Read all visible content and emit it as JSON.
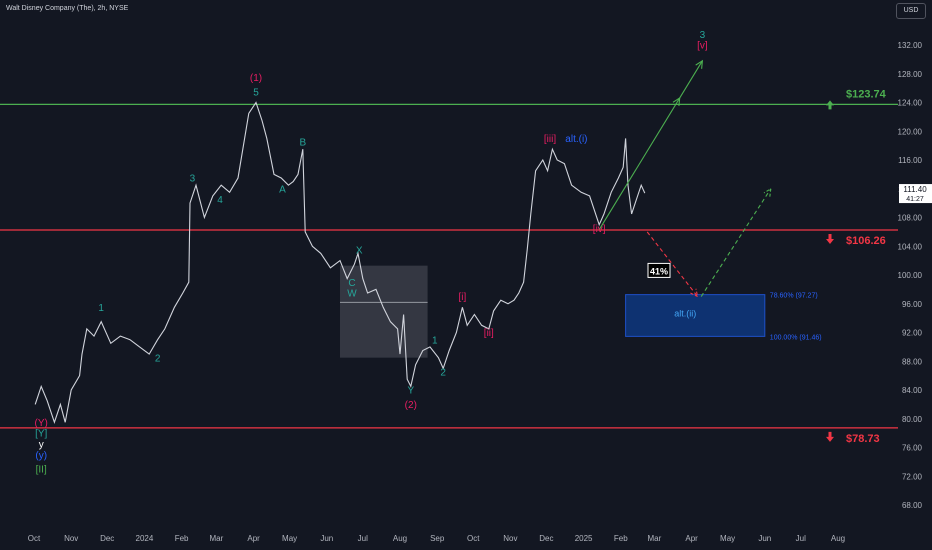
{
  "header": {
    "symbol_title": "Walt Disney Company (The), 2h, NYSE",
    "currency": "USD"
  },
  "price_scale": {
    "ticks": [
      "132.00",
      "128.00",
      "124.00",
      "120.00",
      "116.00",
      "112.00",
      "108.00",
      "104.00",
      "100.00",
      "96.00",
      "92.00",
      "88.00",
      "84.00",
      "80.00",
      "76.00",
      "72.00",
      "68.00"
    ],
    "last_price": "111.40",
    "countdown": "41:27"
  },
  "time_axis": {
    "labels": [
      "Oct",
      "Nov",
      "Dec",
      "2024",
      "Feb",
      "Mar",
      "Apr",
      "May",
      "Jun",
      "Jul",
      "Aug",
      "Sep",
      "Oct",
      "Nov",
      "Dec",
      "2025",
      "Feb",
      "Mar",
      "Apr",
      "May",
      "Jun",
      "Jul",
      "Aug"
    ]
  },
  "chart_data": {
    "type": "line",
    "symbol": "DIS",
    "timeframe": "2h",
    "exchange": "NYSE",
    "ylim": [
      66,
      136
    ],
    "x_range": [
      "2023-10",
      "2025-08"
    ],
    "series": [
      {
        "points": [
          [
            "2023-10-02",
            82.0
          ],
          [
            "2023-10-07",
            84.5
          ],
          [
            "2023-10-12",
            82.5
          ],
          [
            "2023-10-18",
            79.5
          ],
          [
            "2023-10-23",
            82.0
          ],
          [
            "2023-10-27",
            79.5
          ],
          [
            "2023-11-01",
            84.0
          ],
          [
            "2023-11-08",
            86.0
          ],
          [
            "2023-11-10",
            89.0
          ],
          [
            "2023-11-14",
            92.5
          ],
          [
            "2023-11-20",
            91.5
          ],
          [
            "2023-11-26",
            93.5
          ],
          [
            "2023-12-04",
            90.5
          ],
          [
            "2023-12-12",
            91.5
          ],
          [
            "2023-12-20",
            91.0
          ],
          [
            "2023-12-28",
            90.0
          ],
          [
            "2024-01-05",
            89.0
          ],
          [
            "2024-01-12",
            91.0
          ],
          [
            "2024-01-18",
            92.5
          ],
          [
            "2024-01-26",
            95.5
          ],
          [
            "2024-02-02",
            97.5
          ],
          [
            "2024-02-07",
            99.0
          ],
          [
            "2024-02-08",
            110.0
          ],
          [
            "2024-02-13",
            112.5
          ],
          [
            "2024-02-20",
            108.0
          ],
          [
            "2024-02-27",
            111.0
          ],
          [
            "2024-03-05",
            112.5
          ],
          [
            "2024-03-12",
            111.5
          ],
          [
            "2024-03-19",
            113.5
          ],
          [
            "2024-03-28",
            122.5
          ],
          [
            "2024-04-03",
            124.0
          ],
          [
            "2024-04-08",
            121.5
          ],
          [
            "2024-04-12",
            119.0
          ],
          [
            "2024-04-18",
            114.0
          ],
          [
            "2024-04-24",
            113.5
          ],
          [
            "2024-04-30",
            112.5
          ],
          [
            "2024-05-04",
            113.0
          ],
          [
            "2024-05-08",
            114.0
          ],
          [
            "2024-05-12",
            117.5
          ],
          [
            "2024-05-14",
            106.0
          ],
          [
            "2024-05-20",
            104.0
          ],
          [
            "2024-05-27",
            103.0
          ],
          [
            "2024-06-04",
            101.0
          ],
          [
            "2024-06-12",
            102.0
          ],
          [
            "2024-06-18",
            99.5
          ],
          [
            "2024-06-24",
            101.5
          ],
          [
            "2024-06-27",
            103.0
          ],
          [
            "2024-07-01",
            99.5
          ],
          [
            "2024-07-05",
            97.5
          ],
          [
            "2024-07-12",
            98.0
          ],
          [
            "2024-07-18",
            95.5
          ],
          [
            "2024-07-24",
            93.5
          ],
          [
            "2024-07-30",
            92.5
          ],
          [
            "2024-08-01",
            89.0
          ],
          [
            "2024-08-04",
            94.5
          ],
          [
            "2024-08-07",
            85.5
          ],
          [
            "2024-08-10",
            84.5
          ],
          [
            "2024-08-14",
            87.5
          ],
          [
            "2024-08-20",
            89.5
          ],
          [
            "2024-08-26",
            90.0
          ],
          [
            "2024-09-02",
            88.5
          ],
          [
            "2024-09-06",
            87.0
          ],
          [
            "2024-09-11",
            89.5
          ],
          [
            "2024-09-17",
            92.0
          ],
          [
            "2024-09-22",
            95.5
          ],
          [
            "2024-09-26",
            93.0
          ],
          [
            "2024-10-02",
            94.5
          ],
          [
            "2024-10-08",
            93.0
          ],
          [
            "2024-10-14",
            92.5
          ],
          [
            "2024-10-18",
            95.0
          ],
          [
            "2024-10-24",
            96.5
          ],
          [
            "2024-10-30",
            96.0
          ],
          [
            "2024-11-04",
            96.5
          ],
          [
            "2024-11-08",
            97.5
          ],
          [
            "2024-11-12",
            99.0
          ],
          [
            "2024-11-15",
            103.5
          ],
          [
            "2024-11-18",
            108.5
          ],
          [
            "2024-11-22",
            114.5
          ],
          [
            "2024-11-28",
            116.0
          ],
          [
            "2024-12-02",
            114.5
          ],
          [
            "2024-12-06",
            117.5
          ],
          [
            "2024-12-10",
            116.0
          ],
          [
            "2024-12-16",
            115.5
          ],
          [
            "2024-12-22",
            112.5
          ],
          [
            "2024-12-30",
            111.5
          ],
          [
            "2025-01-06",
            111.0
          ],
          [
            "2025-01-10",
            109.0
          ],
          [
            "2025-01-14",
            107.0
          ],
          [
            "2025-01-18",
            108.5
          ],
          [
            "2025-01-24",
            111.5
          ],
          [
            "2025-01-30",
            113.5
          ],
          [
            "2025-02-03",
            115.0
          ],
          [
            "2025-02-05",
            119.0
          ],
          [
            "2025-02-07",
            112.5
          ],
          [
            "2025-02-10",
            108.5
          ],
          [
            "2025-02-14",
            110.5
          ],
          [
            "2025-02-18",
            112.5
          ],
          [
            "2025-02-21",
            111.4
          ]
        ]
      }
    ],
    "horizontal_levels": [
      {
        "label": "$123.74",
        "value": 123.74,
        "color": "#4caf50",
        "arrow": "up"
      },
      {
        "label": "$106.26",
        "value": 106.26,
        "color": "#f23645",
        "arrow": "down"
      },
      {
        "label": "$78.73",
        "value": 78.73,
        "color": "#f23645",
        "arrow": "down"
      }
    ],
    "fib_zone": {
      "upper_label": "78.60% (97.27)",
      "upper": 97.27,
      "lower_label": "100.00% (91.46)",
      "lower": 91.46,
      "from": "2025-02-05",
      "to": "2025-06-01",
      "name": "alt.(ii)"
    },
    "gray_box": {
      "from": "2024-06-12",
      "to": "2024-08-24",
      "top": 101.3,
      "mid": 96.2,
      "bottom": 88.5
    },
    "projections": [
      {
        "style": "solid",
        "color": "#4caf50",
        "points": [
          [
            "2025-01-14",
            106.3
          ],
          [
            "2025-04-10",
            129.8
          ]
        ]
      },
      {
        "style": "dashed",
        "color": "#f23645",
        "points": [
          [
            "2025-02-23",
            106.0
          ],
          [
            "2025-04-06",
            97.0
          ]
        ]
      },
      {
        "style": "dashed",
        "color": "#4caf50",
        "points": [
          [
            "2025-04-09",
            97.0
          ],
          [
            "2025-06-06",
            112.0
          ]
        ]
      }
    ],
    "probability_label": "41%",
    "wave_labels": [
      {
        "text": "(Y)",
        "color": "#e91e63",
        "x": "2023-10-07",
        "y": 79.0,
        "pos": "below",
        "bg": false
      },
      {
        "text": "[Y]",
        "color": "#26a69a",
        "x": "2023-10-07",
        "y": 77.5,
        "pos": "below",
        "bg": false
      },
      {
        "text": "y",
        "color": "#ffffff",
        "x": "2023-10-07",
        "y": 76.0,
        "pos": "below",
        "bg": false
      },
      {
        "text": "(y)",
        "color": "#2962ff",
        "x": "2023-10-07",
        "y": 74.5,
        "pos": "below",
        "bg": false
      },
      {
        "text": "[II]",
        "color": "#4caf50",
        "x": "2023-10-07",
        "y": 72.5,
        "pos": "below",
        "bg": false
      },
      {
        "text": "1",
        "color": "#26a69a",
        "x": "2023-11-26",
        "y": 95.0,
        "pos": "above",
        "bg": false
      },
      {
        "text": "2",
        "color": "#26a69a",
        "x": "2024-01-12",
        "y": 88.0,
        "pos": "below",
        "bg": false
      },
      {
        "text": "3",
        "color": "#26a69a",
        "x": "2024-02-10",
        "y": 113.0,
        "pos": "above",
        "bg": false
      },
      {
        "text": "4",
        "color": "#26a69a",
        "x": "2024-03-04",
        "y": 110.0,
        "pos": "below",
        "bg": false
      },
      {
        "text": "(1)",
        "color": "#e91e63",
        "x": "2024-04-03",
        "y": 127.0,
        "pos": "above",
        "bg": false
      },
      {
        "text": "5",
        "color": "#26a69a",
        "x": "2024-04-03",
        "y": 125.0,
        "pos": "above",
        "bg": false
      },
      {
        "text": "A",
        "color": "#26a69a",
        "x": "2024-04-25",
        "y": 111.5,
        "pos": "below",
        "bg": false
      },
      {
        "text": "B",
        "color": "#26a69a",
        "x": "2024-05-12",
        "y": 118.0,
        "pos": "above",
        "bg": false
      },
      {
        "text": "X",
        "color": "#26a69a",
        "x": "2024-06-28",
        "y": 103.0,
        "pos": "above",
        "bg": false
      },
      {
        "text": "C",
        "color": "#26a69a",
        "x": "2024-06-22",
        "y": 98.5,
        "pos": "above",
        "bg": false
      },
      {
        "text": "W",
        "color": "#26a69a",
        "x": "2024-06-22",
        "y": 97.0,
        "pos": "above",
        "bg": false
      },
      {
        "text": "Y",
        "color": "#26a69a",
        "x": "2024-08-10",
        "y": 83.5,
        "pos": "below",
        "bg": false
      },
      {
        "text": "(2)",
        "color": "#e91e63",
        "x": "2024-08-10",
        "y": 81.5,
        "pos": "below",
        "bg": false
      },
      {
        "text": "1",
        "color": "#26a69a",
        "x": "2024-08-30",
        "y": 90.5,
        "pos": "above",
        "bg": false
      },
      {
        "text": "2",
        "color": "#26a69a",
        "x": "2024-09-06",
        "y": 86.0,
        "pos": "below",
        "bg": false
      },
      {
        "text": "[i]",
        "color": "#e91e63",
        "x": "2024-09-22",
        "y": 96.5,
        "pos": "above",
        "bg": false
      },
      {
        "text": "[ii]",
        "color": "#e91e63",
        "x": "2024-10-14",
        "y": 91.5,
        "pos": "below",
        "bg": false
      },
      {
        "text": "[iii]",
        "color": "#e91e63",
        "x": "2024-12-04",
        "y": 118.5,
        "pos": "above",
        "bg": false
      },
      {
        "text": "alt.(i)",
        "color": "#2962ff",
        "x": "2024-12-26",
        "y": 118.5,
        "pos": "above",
        "bg": false
      },
      {
        "text": "[iv]",
        "color": "#e91e63",
        "x": "2025-01-14",
        "y": 106.0,
        "pos": "below",
        "bg": false
      },
      {
        "text": "3",
        "color": "#26a69a",
        "x": "2025-04-10",
        "y": 133.0,
        "pos": "above",
        "bg": false
      },
      {
        "text": "[v]",
        "color": "#e91e63",
        "x": "2025-04-10",
        "y": 131.5,
        "pos": "above",
        "bg": false
      }
    ]
  }
}
